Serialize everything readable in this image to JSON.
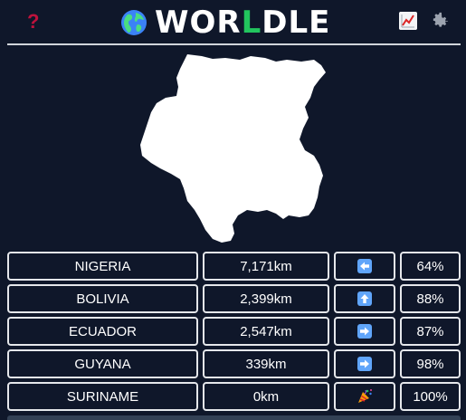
{
  "header": {
    "title_parts": [
      "WOR",
      "L",
      "DLE"
    ],
    "help_icon": "question-mark-icon",
    "stats_icon": "chart-trending-icon",
    "settings_icon": "gear-icon",
    "globe_icon": "globe-americas-icon",
    "accent_color": "#22c55e",
    "help_color": "#be123c"
  },
  "target_country_shape": "suriname-outline",
  "guesses": [
    {
      "country": "NIGERIA",
      "distance": "7,171km",
      "direction": "left",
      "percent": "64%"
    },
    {
      "country": "BOLIVIA",
      "distance": "2,399km",
      "direction": "up",
      "percent": "88%"
    },
    {
      "country": "ECUADOR",
      "distance": "2,547km",
      "direction": "right",
      "percent": "87%"
    },
    {
      "country": "GUYANA",
      "distance": "339km",
      "direction": "right",
      "percent": "98%"
    },
    {
      "country": "SURINAME",
      "distance": "0km",
      "direction": "win",
      "percent": "100%"
    }
  ],
  "colors": {
    "background": "#0f172a",
    "cell_border": "#e5e7eb",
    "arrow_tile": "#60a5fa"
  }
}
